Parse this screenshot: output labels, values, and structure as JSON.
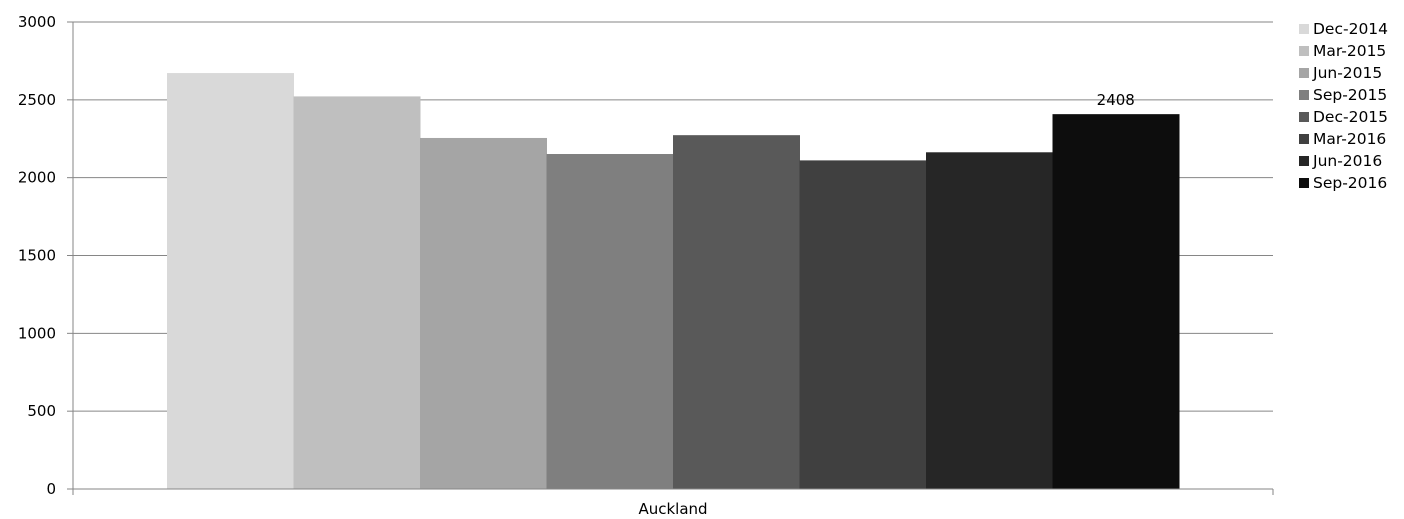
{
  "chart_data": {
    "type": "bar",
    "title": "",
    "xlabel": "",
    "ylabel": "",
    "categories": [
      "Auckland"
    ],
    "ylim": [
      0,
      3000
    ],
    "yticks": [
      0,
      500,
      1000,
      1500,
      2000,
      2500,
      3000
    ],
    "grid": true,
    "legend_position": "right",
    "series": [
      {
        "name": "Dec-2014",
        "values": [
          2672
        ],
        "color": "#d9d9d9"
      },
      {
        "name": "Mar-2015",
        "values": [
          2522
        ],
        "color": "#bfbfbf"
      },
      {
        "name": "Jun-2015",
        "values": [
          2255
        ],
        "color": "#a5a5a5"
      },
      {
        "name": "Sep-2015",
        "values": [
          2152
        ],
        "color": "#7f7f7f"
      },
      {
        "name": "Dec-2015",
        "values": [
          2273
        ],
        "color": "#595959"
      },
      {
        "name": "Mar-2016",
        "values": [
          2111
        ],
        "color": "#404040"
      },
      {
        "name": "Jun-2016",
        "values": [
          2163
        ],
        "color": "#262626"
      },
      {
        "name": "Sep-2016",
        "values": [
          2408
        ],
        "color": "#0d0d0d"
      }
    ],
    "data_labels": [
      {
        "series": "Sep-2016",
        "category": "Auckland",
        "text": "2408"
      }
    ]
  }
}
